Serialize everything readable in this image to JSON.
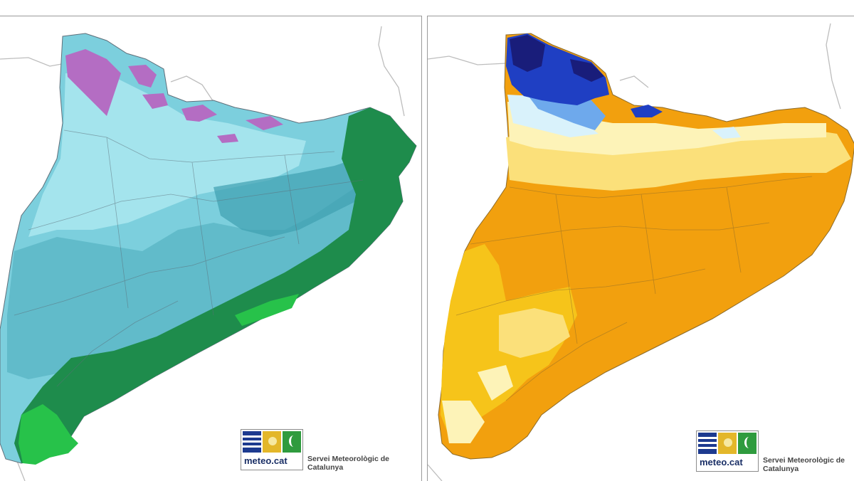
{
  "maps": [
    {
      "id": "left",
      "palette": [
        "#9fe3ea",
        "#7ccfdd",
        "#5db7c7",
        "#3f9fb1",
        "#2d8799",
        "#1e8c4c",
        "#27c24a",
        "#b46dc3"
      ],
      "logo": {
        "wordmark": "meteo.cat",
        "organization": "Servei Meteorològic de Catalunya"
      }
    },
    {
      "id": "right",
      "palette": [
        "#f2a00e",
        "#f6c41a",
        "#fbe07a",
        "#fdf3b8",
        "#d9f2fb",
        "#6ea9ec",
        "#1f3fc3",
        "#191d7a"
      ],
      "logo": {
        "wordmark": "meteo.cat",
        "organization": "Servei Meteorològic de Catalunya"
      }
    }
  ]
}
